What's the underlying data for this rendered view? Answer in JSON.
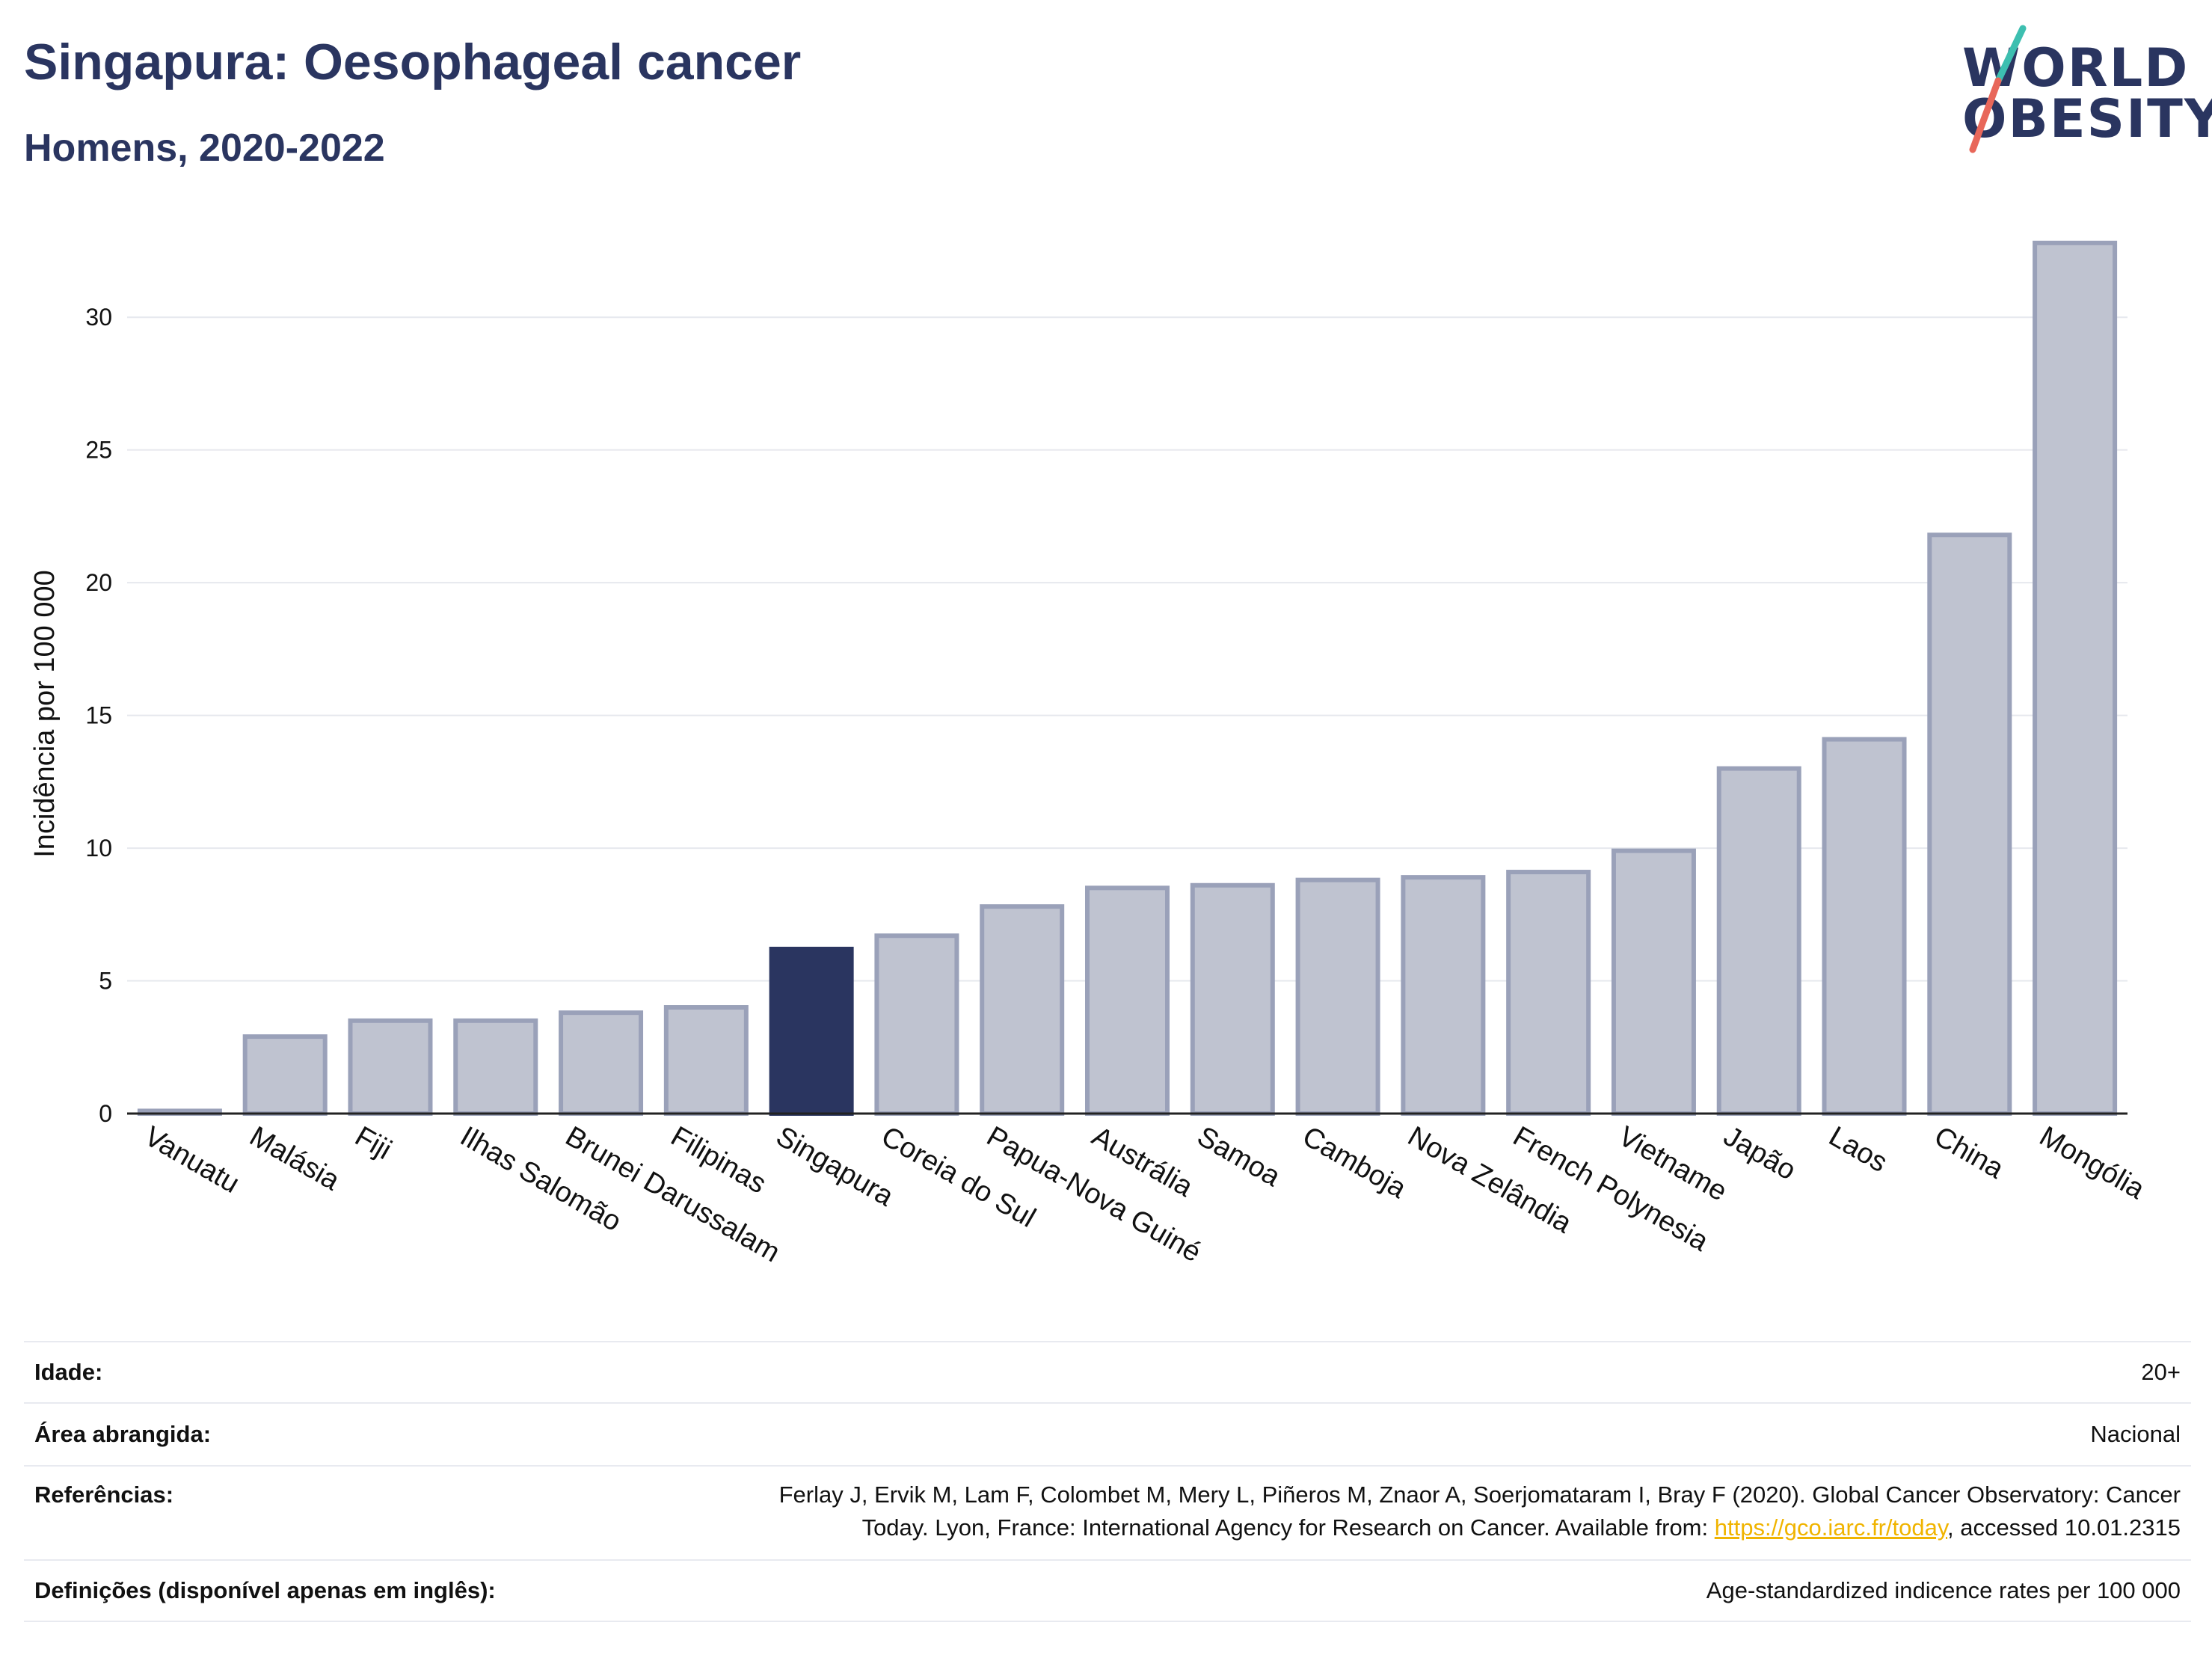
{
  "header": {
    "title": "Singapura: Oesophageal cancer",
    "subtitle": "Homens, 2020-2022"
  },
  "logo": {
    "line1": "WORLD",
    "line2": "OBESITY"
  },
  "chart_data": {
    "type": "bar",
    "categories": [
      "Vanuatu",
      "Malásia",
      "Fiji",
      "Ilhas Salomão",
      "Brunei Darussalam",
      "Filipinas",
      "Singapura",
      "Coreia do Sul",
      "Papua-Nova Guiné",
      "Austrália",
      "Samoa",
      "Camboja",
      "Nova Zelândia",
      "French Polynesia",
      "Vietname",
      "Japão",
      "Laos",
      "China",
      "Mongólia"
    ],
    "values": [
      0.1,
      2.9,
      3.5,
      3.5,
      3.8,
      4.0,
      6.2,
      6.7,
      7.8,
      8.5,
      8.6,
      8.8,
      8.9,
      9.1,
      9.9,
      13.0,
      14.1,
      21.8,
      32.8
    ],
    "highlight": "Singapura",
    "ylabel": "Incidência por 100 000",
    "xlabel": "",
    "ylim": [
      0,
      33.5
    ],
    "yticks": [
      0,
      5,
      10,
      15,
      20,
      25,
      30
    ],
    "grid": true,
    "colors": {
      "bar": "#bfc3d0",
      "bar_edge": "#9aa1b9",
      "highlight": "#2a3560",
      "grid": "#e6e8ee"
    }
  },
  "meta": {
    "age_label": "Idade:",
    "age_value": "20+",
    "area_label": "Área abrangida:",
    "area_value": "Nacional",
    "ref_label": "Referências:",
    "ref_line1": "Ferlay J, Ervik M, Lam F, Colombet M, Mery L, Piñeros M, Znaor A, Soerjomataram I, Bray F (2020). Global Cancer Observatory: Cancer",
    "ref_line2_pre": "Today. Lyon, France: International Agency for Research on Cancer. Available from: ",
    "ref_link": "https://gco.iarc.fr/today",
    "ref_line2_post": ", accessed 10.01.2315",
    "def_label": "Definições (disponível apenas em inglês):",
    "def_value": "Age-standardized indicence rates per 100 000"
  }
}
